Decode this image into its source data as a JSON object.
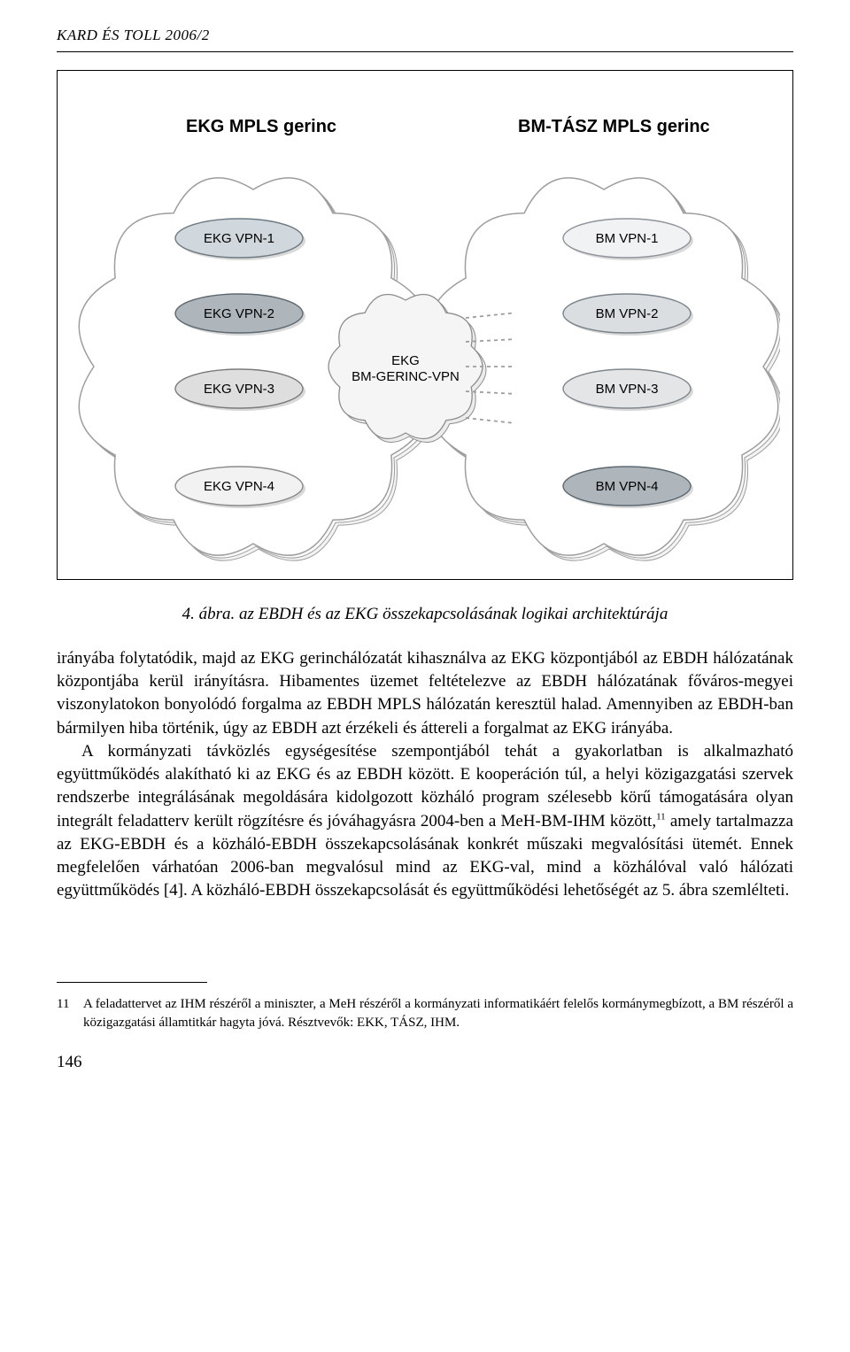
{
  "header": "KARD ÉS TOLL 2006/2",
  "figure": {
    "left_title": "EKG MPLS gerinc",
    "right_title": "BM-TÁSZ MPLS gerinc",
    "bridge_label1": "EKG",
    "bridge_label2": "BM-GERINC-VPN",
    "left_nodes": [
      {
        "label": "EKG VPN-1",
        "fill": "#d1d8dd",
        "stroke": "#6e7a82"
      },
      {
        "label": "EKG VPN-2",
        "fill": "#aeb6bc",
        "stroke": "#5d6870"
      },
      {
        "label": "EKG VPN-3",
        "fill": "#dedede",
        "stroke": "#7a7a7a"
      },
      {
        "label": "EKG VPN-4",
        "fill": "#f2f2f2",
        "stroke": "#8a8a8a"
      }
    ],
    "right_nodes": [
      {
        "label": "BM VPN-1",
        "fill": "#f1f2f3",
        "stroke": "#8e949a"
      },
      {
        "label": "BM VPN-2",
        "fill": "#dadee1",
        "stroke": "#7a838a"
      },
      {
        "label": "BM VPN-3",
        "fill": "#e3e5e7",
        "stroke": "#80878d"
      },
      {
        "label": "BM VPN-4",
        "fill": "#aeb6bc",
        "stroke": "#5d6870"
      }
    ],
    "cloud_fill": "#ffffff",
    "cloud_stroke": "#9d9d9d",
    "bridge_fill": "#f5f5f5",
    "bridge_stroke": "#8d8d8d",
    "inner_fontsize": 15,
    "title_fontsize": 20
  },
  "caption": "4. ábra. az EBDH és az EKG összekapcsolásának logikai architektúrája",
  "paragraph1": "irányába folytatódik, majd az EKG gerinchálózatát kihasználva az EKG központjából az EBDH hálózatának központjába kerül irányításra. Hibamentes üzemet feltételezve az EBDH hálózatának főváros-megyei viszonylatokon bonyolódó forgalma az EBDH MPLS hálózatán keresztül halad. Amennyiben az EBDH-ban bármilyen hiba történik, úgy az EBDH azt érzékeli és áttereli a forgalmat az EKG irányába.",
  "paragraph2_a": "A kormányzati távközlés egységesítése szempontjából tehát a gyakorlatban is alkalmazható együttműködés alakítható ki az EKG és az EBDH között. E kooperáción túl, a helyi közigazgatási szervek rendszerbe integrálásának megoldására kidolgozott közháló program szélesebb körű támogatására olyan integrált feladatterv került rögzítésre és jóváhagyásra 2004-ben a MeH-BM-IHM között,",
  "paragraph2_sup": "11",
  "paragraph2_b": " amely tartalmazza az EKG-EBDH és a közháló-EBDH összekapcsolásának konkrét műszaki megvalósítási ütemét. Ennek megfelelően várhatóan 2006-ban megvalósul mind az EKG-val, mind a közhálóval való hálózati együttműködés [4]. A közháló-EBDH összekapcsolását és együttműködési lehetőségét az 5. ábra szemlélteti.",
  "footnote_num": "11",
  "footnote_text": "A feladattervet az IHM részéről a miniszter, a MeH részéről a kormányzati informatikáért felelős kormánymegbízott, a BM részéről a közigazgatási államtitkár hagyta jóvá. Résztvevők: EKK, TÁSZ, IHM.",
  "page_number": "146"
}
